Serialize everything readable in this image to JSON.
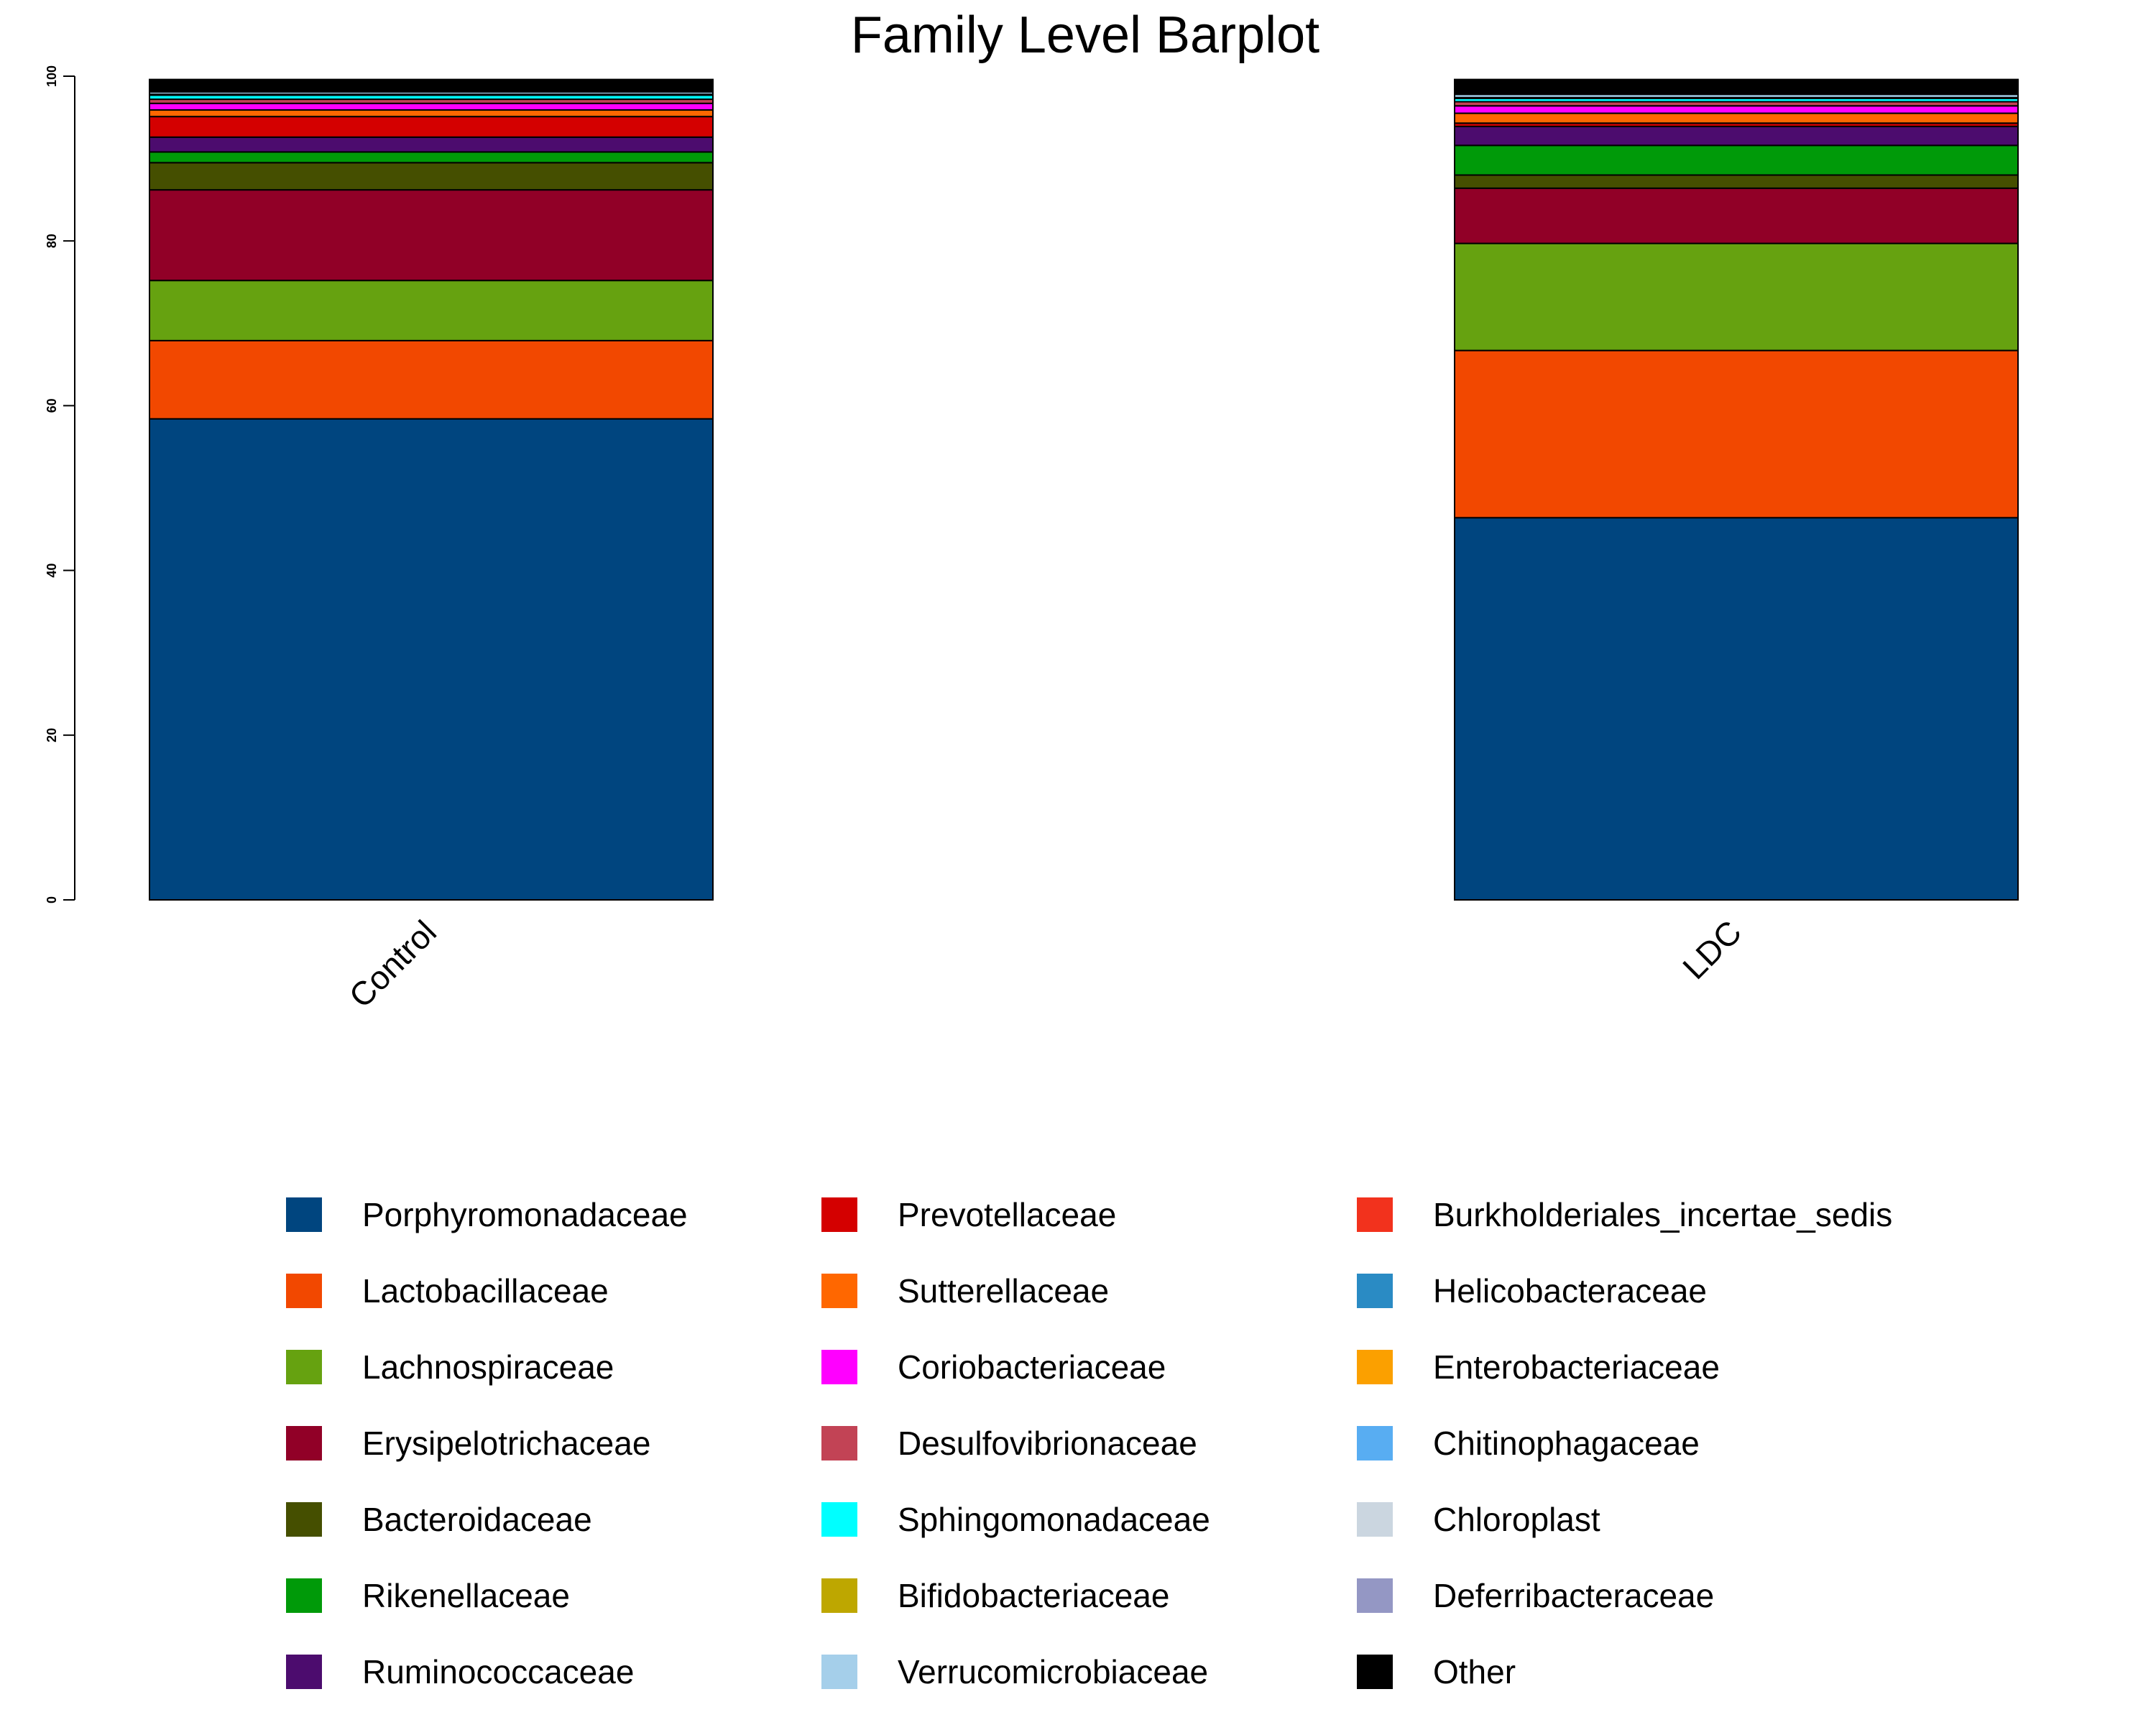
{
  "chart_data": {
    "type": "bar",
    "stacked": true,
    "title": "Family Level Barplot",
    "xlabel": "",
    "ylabel": "",
    "ylim": [
      0,
      100
    ],
    "yticks": [
      "0",
      "20",
      "40",
      "60",
      "80",
      "100"
    ],
    "categories": [
      "Control",
      "LDC"
    ],
    "grid": false,
    "legend_position": "bottom",
    "series": [
      {
        "name": "Porphyromonadaceae",
        "color": "#00457f",
        "values": [
          58.4,
          46.4
        ]
      },
      {
        "name": "Lactobacillaceae",
        "color": "#f24800",
        "values": [
          9.5,
          20.3
        ]
      },
      {
        "name": "Lachnospiraceae",
        "color": "#66a210",
        "values": [
          7.3,
          13.0
        ]
      },
      {
        "name": "Erysipelotrichaceae",
        "color": "#910027",
        "values": [
          11.0,
          6.7
        ]
      },
      {
        "name": "Bacteroidaceae",
        "color": "#454f00",
        "values": [
          3.3,
          1.6
        ]
      },
      {
        "name": "Rikenellaceae",
        "color": "#009a09",
        "values": [
          1.3,
          3.6
        ]
      },
      {
        "name": "Ruminococcaceae",
        "color": "#4c0c6e",
        "values": [
          1.8,
          2.3
        ]
      },
      {
        "name": "Prevotellaceae",
        "color": "#d40000",
        "values": [
          2.5,
          0.4
        ]
      },
      {
        "name": "Sutterellaceae",
        "color": "#ff6700",
        "values": [
          0.8,
          1.2
        ]
      },
      {
        "name": "Coriobacteriaceae",
        "color": "#ff00ff",
        "values": [
          0.8,
          0.9
        ]
      },
      {
        "name": "Desulfovibrionaceae",
        "color": "#c24355",
        "values": [
          0.5,
          0.5
        ]
      },
      {
        "name": "Sphingomonadaceae",
        "color": "#00ffff",
        "values": [
          0.5,
          0.4
        ]
      },
      {
        "name": "Bifidobacteriaceae",
        "color": "#bea700",
        "values": [
          0.1,
          0.1
        ]
      },
      {
        "name": "Verrucomicrobiaceae",
        "color": "#a5cfea",
        "values": [
          0.3,
          0.4
        ]
      },
      {
        "name": "Burkholderiales_incertae_sedis",
        "color": "#f2321d",
        "values": [
          0.1,
          0.1
        ]
      },
      {
        "name": "Helicobacteraceae",
        "color": "#2a8bc4",
        "values": [
          0.1,
          0.1
        ]
      },
      {
        "name": "Enterobacteriaceae",
        "color": "#fba000",
        "values": [
          0.1,
          0.1
        ]
      },
      {
        "name": "Chitinophagaceae",
        "color": "#58adf2",
        "values": [
          0.1,
          0.1
        ]
      },
      {
        "name": "Chloroplast",
        "color": "#cbd6e0",
        "values": [
          0.1,
          0.1
        ]
      },
      {
        "name": "Deferribacteraceae",
        "color": "#9497c4",
        "values": [
          0.1,
          0.1
        ]
      },
      {
        "name": "Other",
        "color": "#000000",
        "values": [
          0.9,
          1.2
        ]
      }
    ]
  }
}
